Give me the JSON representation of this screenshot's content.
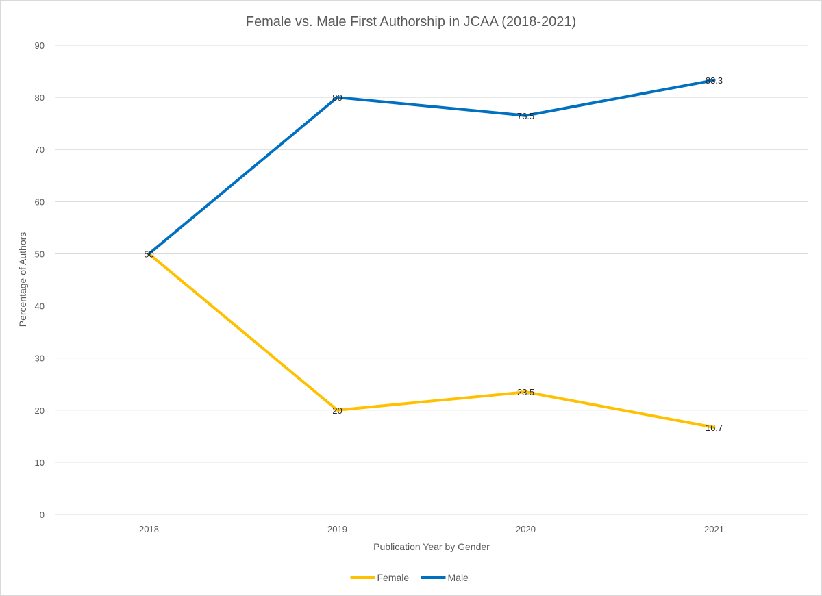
{
  "chart_data": {
    "type": "line",
    "title": "Female vs. Male First Authorship in JCAA (2018-2021)",
    "xlabel": "Publication Year by Gender",
    "ylabel": "Percentage of Authors",
    "categories": [
      "2018",
      "2019",
      "2020",
      "2021"
    ],
    "ylim": [
      0,
      90
    ],
    "yticks": [
      0,
      10,
      20,
      30,
      40,
      50,
      60,
      70,
      80,
      90
    ],
    "grid": true,
    "legend_position": "bottom",
    "series": [
      {
        "name": "Female",
        "color": "#FFC000",
        "values": [
          50,
          20,
          23.5,
          16.7
        ],
        "labels": [
          "50",
          "20",
          "23.5",
          "16.7"
        ]
      },
      {
        "name": "Male",
        "color": "#0070C0",
        "values": [
          50,
          80,
          76.5,
          83.3
        ],
        "labels": [
          "50",
          "80",
          "76.5",
          "83.3"
        ]
      }
    ],
    "data_labels_shown": {
      "Female": [
        false,
        true,
        true,
        true
      ],
      "Male": [
        true,
        true,
        true,
        true
      ]
    }
  }
}
